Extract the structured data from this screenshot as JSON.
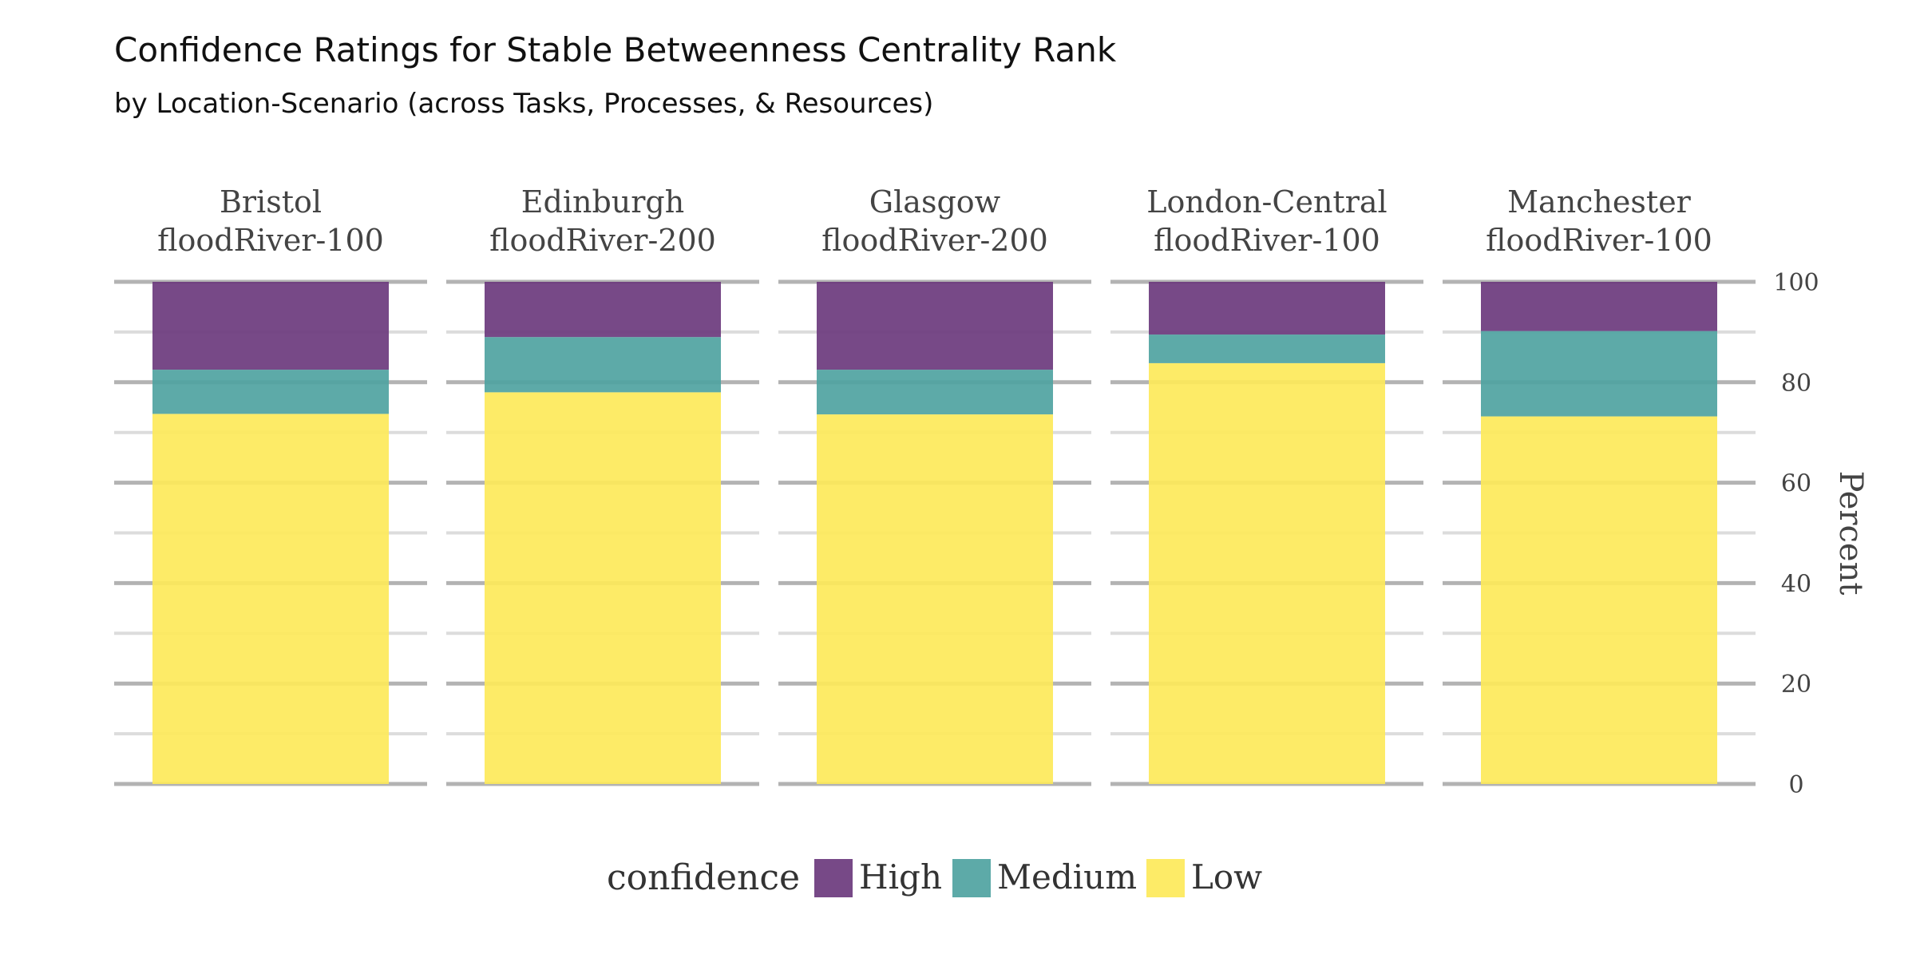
{
  "chart_data": {
    "type": "bar",
    "stacked": true,
    "faceted": true,
    "title": "Confidence Ratings for Stable Betweenness Centrality Rank",
    "subtitle": "by Location-Scenario (across Tasks, Processes, & Resources)",
    "ylabel": "Percent",
    "ylim": [
      0,
      100
    ],
    "yticks": [
      0,
      20,
      40,
      60,
      80,
      100
    ],
    "legend": {
      "title": "confidence",
      "position": "bottom"
    },
    "facets": [
      {
        "line1": "Bristol",
        "line2": "floodRiver-100"
      },
      {
        "line1": "Edinburgh",
        "line2": "floodRiver-200"
      },
      {
        "line1": "Glasgow",
        "line2": "floodRiver-200"
      },
      {
        "line1": "London-Central",
        "line2": "floodRiver-100"
      },
      {
        "line1": "Manchester",
        "line2": "floodRiver-100"
      }
    ],
    "series": [
      {
        "name": "High",
        "color": "#6b3a7d",
        "values": [
          17.5,
          11.0,
          17.5,
          10.5,
          9.8
        ]
      },
      {
        "name": "Medium",
        "color": "#4fa3a1",
        "values": [
          8.8,
          11.0,
          8.9,
          5.7,
          17.0
        ]
      },
      {
        "name": "Low",
        "color": "#fde95a",
        "values": [
          73.7,
          78.0,
          73.6,
          83.8,
          73.2
        ]
      }
    ],
    "grid": true
  }
}
